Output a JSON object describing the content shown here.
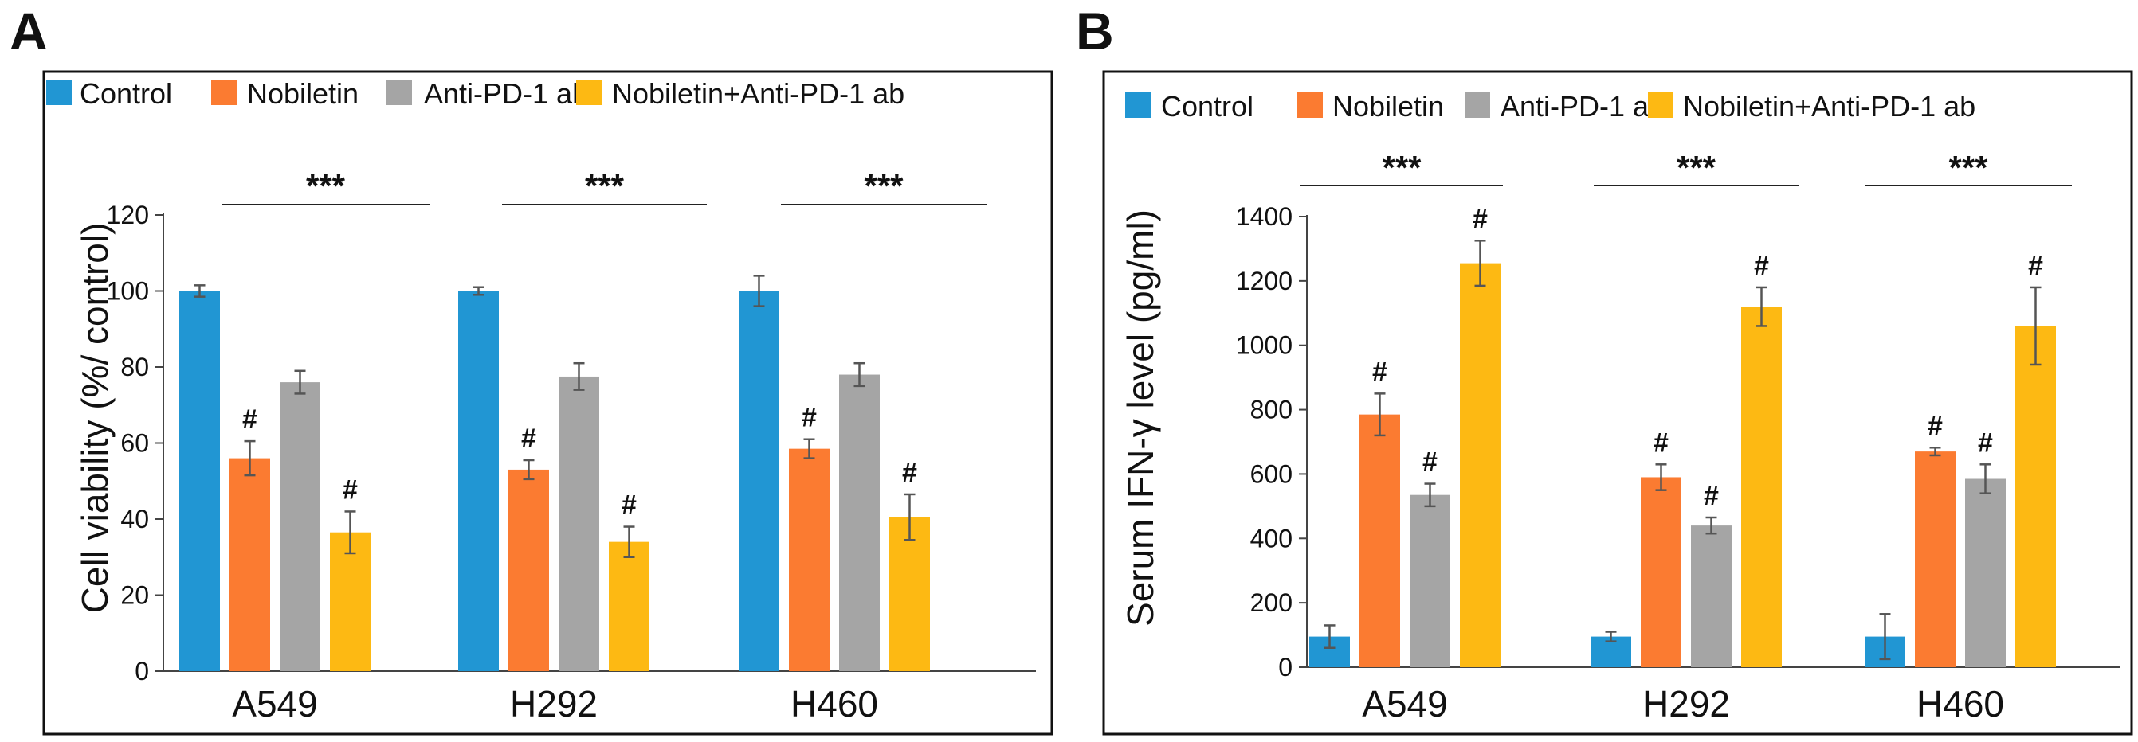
{
  "chart_data": [
    {
      "panel": "A",
      "type": "bar",
      "title": "",
      "xlabel": "",
      "ylabel": "Cell viability (%/ control)",
      "ylim": [
        0,
        120
      ],
      "yticks": [
        0,
        20,
        40,
        60,
        80,
        100,
        120
      ],
      "grid": false,
      "legend": "top",
      "categories": [
        "A549",
        "H292",
        "H460"
      ],
      "series": [
        {
          "name": "Control",
          "color": "#2196d3",
          "values": [
            100,
            100,
            100
          ],
          "errors": [
            1.5,
            1,
            4
          ],
          "marks": [
            "",
            "",
            ""
          ]
        },
        {
          "name": "Nobiletin",
          "color": "#fb7b31",
          "values": [
            56,
            53,
            58.5
          ],
          "errors": [
            4.5,
            2.5,
            2.5
          ],
          "marks": [
            "#",
            "#",
            "#"
          ]
        },
        {
          "name": "Anti-PD-1 ab",
          "color": "#a5a5a5",
          "values": [
            76,
            77.5,
            78
          ],
          "errors": [
            3,
            3.5,
            3
          ],
          "marks": [
            "",
            "",
            ""
          ]
        },
        {
          "name": "Nobiletin+Anti-PD-1 ab",
          "color": "#fdb913",
          "values": [
            36.5,
            34,
            40.5
          ],
          "errors": [
            5.5,
            4,
            6
          ],
          "marks": [
            "#",
            "#",
            "#"
          ]
        }
      ],
      "significance": [
        {
          "category": "A549",
          "label": "***"
        },
        {
          "category": "H292",
          "label": "***"
        },
        {
          "category": "H460",
          "label": "***"
        }
      ]
    },
    {
      "panel": "B",
      "type": "bar",
      "title": "",
      "xlabel": "",
      "ylabel": "Serum IFN-γ level (pg/ml)",
      "ylim": [
        0,
        1400
      ],
      "yticks": [
        0,
        200,
        400,
        600,
        800,
        1000,
        1200,
        1400
      ],
      "grid": false,
      "legend": "top",
      "categories": [
        "A549",
        "H292",
        "H460"
      ],
      "series": [
        {
          "name": "Control",
          "color": "#2196d3",
          "values": [
            95,
            95,
            95
          ],
          "errors": [
            35,
            15,
            70
          ],
          "marks": [
            "",
            "",
            ""
          ]
        },
        {
          "name": "Nobiletin",
          "color": "#fb7b31",
          "values": [
            785,
            590,
            670
          ],
          "errors": [
            65,
            40,
            12
          ],
          "marks": [
            "#",
            "#",
            "#"
          ]
        },
        {
          "name": "Anti-PD-1 ab",
          "color": "#a5a5a5",
          "values": [
            535,
            440,
            585
          ],
          "errors": [
            35,
            25,
            45
          ],
          "marks": [
            "#",
            "#",
            "#"
          ]
        },
        {
          "name": "Nobiletin+Anti-PD-1 ab",
          "color": "#fdb913",
          "values": [
            1255,
            1120,
            1060
          ],
          "errors": [
            70,
            60,
            120
          ],
          "marks": [
            "#",
            "#",
            "#"
          ]
        }
      ],
      "significance": [
        {
          "category": "A549",
          "label": "***"
        },
        {
          "category": "H292",
          "label": "***"
        },
        {
          "category": "H460",
          "label": "***"
        }
      ]
    }
  ]
}
